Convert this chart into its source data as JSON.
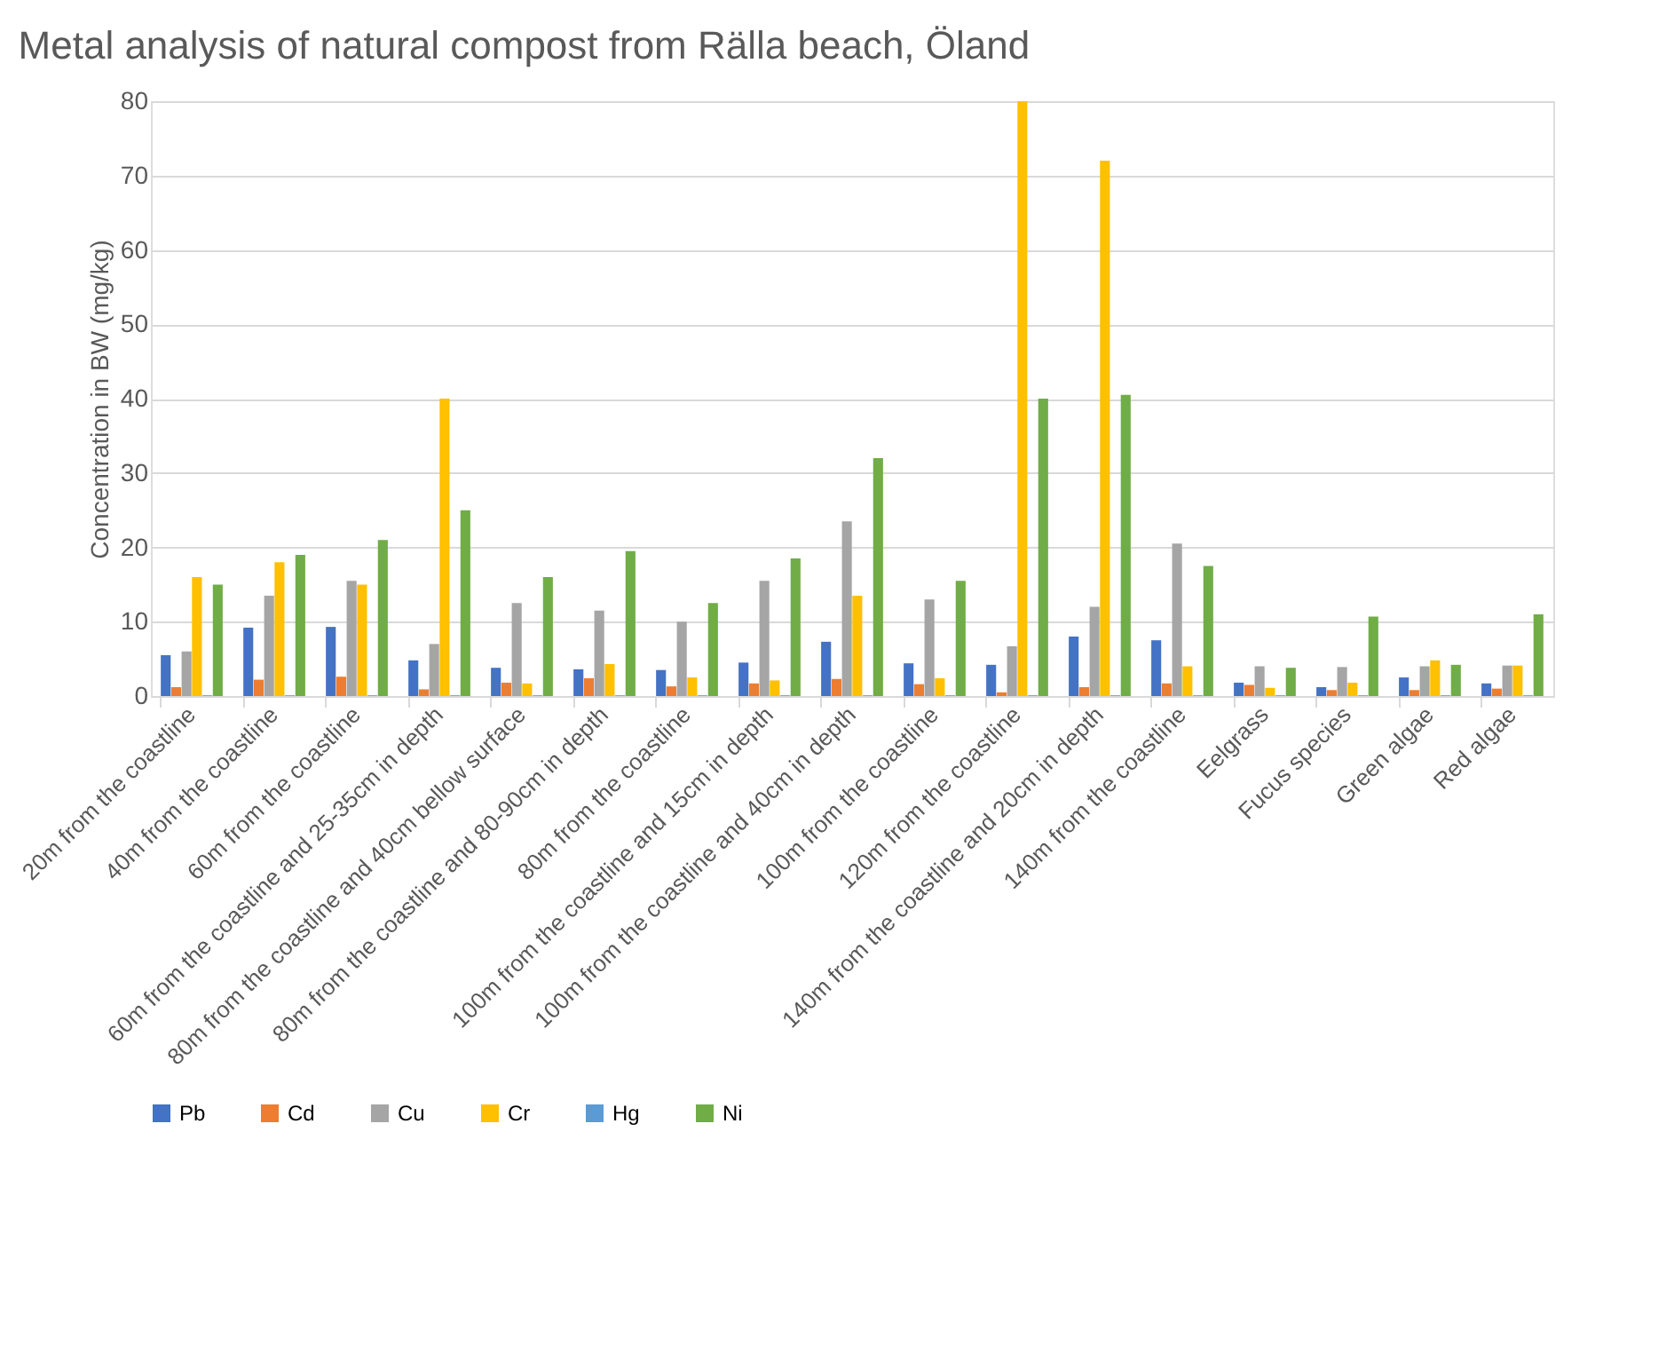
{
  "chart_data": {
    "type": "bar",
    "title": "Metal analysis of natural compost from Rälla beach, Öland",
    "ylabel": "Concentration in BW (mg/kg)",
    "categories": [
      "20m from the coastline",
      "40m from the coastline",
      "60m from the coastline",
      "60m from the coastline and 25-35cm in depth",
      "80m from the coastline and 40cm bellow surface",
      "80m from the coastline and 80-90cm in depth",
      "80m from the coastline",
      "100m from the coastline and 15cm in depth",
      "100m from the coastline and 40cm in depth",
      "100m from the coastline",
      "120m from the coastline",
      "140m from the coastline and 20cm in depth",
      "140m from the coastline",
      "Eelgrass",
      "Fucus species",
      "Green algae",
      "Red algae"
    ],
    "series": [
      {
        "name": "Pb",
        "color": "#4472c4",
        "values": [
          5.5,
          9.2,
          9.3,
          4.8,
          3.8,
          3.6,
          3.5,
          4.5,
          7.3,
          4.4,
          4.2,
          8,
          7.5,
          1.8,
          1.2,
          2.5,
          1.7
        ]
      },
      {
        "name": "Cd",
        "color": "#ed7d31",
        "values": [
          1.2,
          2.2,
          2.6,
          0.9,
          1.8,
          2.4,
          1.3,
          1.7,
          2.3,
          1.6,
          0.5,
          1.2,
          1.7,
          1.5,
          0.8,
          0.8,
          1.0
        ]
      },
      {
        "name": "Cu",
        "color": "#a5a5a5",
        "values": [
          6,
          13.5,
          15.5,
          7,
          12.5,
          11.5,
          10,
          15.5,
          23.5,
          13,
          6.7,
          12,
          20.5,
          4,
          3.9,
          4,
          4.1
        ]
      },
      {
        "name": "Cr",
        "color": "#ffc000",
        "values": [
          16,
          18,
          15,
          40,
          1.7,
          4.3,
          2.5,
          2.1,
          13.5,
          2.4,
          80,
          72,
          4,
          1.1,
          1.8,
          4.8,
          4.1
        ]
      },
      {
        "name": "Hg",
        "color": "#5b9bd5",
        "values": [
          0.1,
          0.1,
          0.1,
          0.1,
          0.1,
          0.1,
          0.1,
          0.1,
          0.1,
          0.1,
          0.1,
          0.1,
          0.1,
          0.1,
          0.1,
          0.1,
          0.1
        ]
      },
      {
        "name": "Ni",
        "color": "#70ad47",
        "values": [
          15,
          19,
          21,
          25,
          16,
          19.5,
          12.5,
          18.5,
          32,
          15.5,
          40,
          40.5,
          17.5,
          3.8,
          10.7,
          4.2,
          11
        ]
      }
    ],
    "ylim": [
      0,
      80
    ],
    "yticks": [
      0,
      10,
      20,
      30,
      40,
      50,
      60,
      70,
      80
    ],
    "grid": "y",
    "legend": "bottom"
  }
}
